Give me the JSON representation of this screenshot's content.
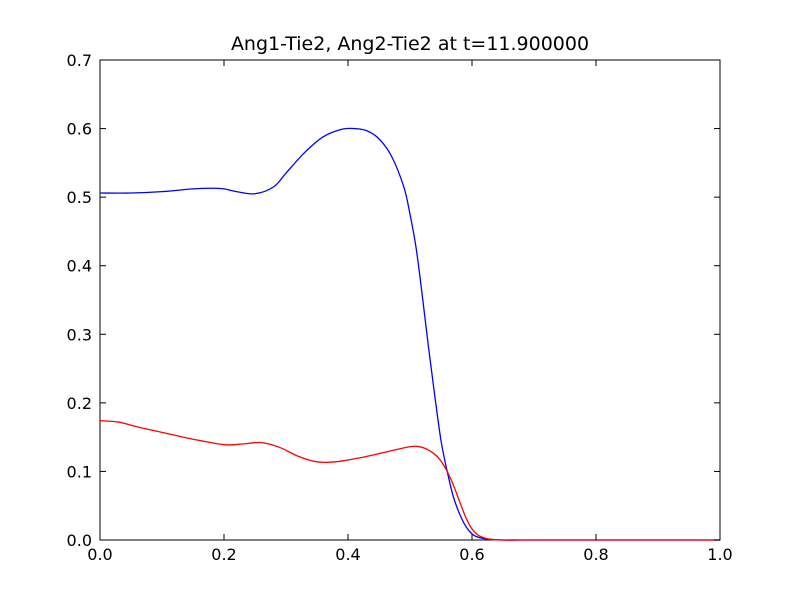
{
  "chart_data": {
    "type": "line",
    "title": "Ang1-Tie2, Ang2-Tie2 at t=11.900000",
    "xlabel": "",
    "ylabel": "",
    "xlim": [
      0.0,
      1.0
    ],
    "ylim": [
      0.0,
      0.7
    ],
    "grid": false,
    "x_ticks": [
      "0.0",
      "0.2",
      "0.4",
      "0.6",
      "0.8",
      "1.0"
    ],
    "y_ticks": [
      "0.0",
      "0.1",
      "0.2",
      "0.3",
      "0.4",
      "0.5",
      "0.6",
      "0.7"
    ],
    "series": [
      {
        "color": "#0000ff",
        "x": [
          0.0,
          0.05,
          0.1,
          0.15,
          0.18,
          0.2,
          0.22,
          0.25,
          0.28,
          0.3,
          0.33,
          0.36,
          0.39,
          0.41,
          0.43,
          0.45,
          0.47,
          0.49,
          0.5,
          0.51,
          0.52,
          0.53,
          0.54,
          0.55,
          0.56,
          0.57,
          0.58,
          0.59,
          0.6,
          0.61,
          0.62,
          0.63,
          0.65,
          0.7,
          0.8,
          0.9,
          1.0
        ],
        "y": [
          0.506,
          0.506,
          0.508,
          0.512,
          0.513,
          0.512,
          0.508,
          0.505,
          0.515,
          0.535,
          0.565,
          0.588,
          0.599,
          0.6,
          0.597,
          0.585,
          0.56,
          0.515,
          0.475,
          0.425,
          0.355,
          0.28,
          0.21,
          0.145,
          0.1,
          0.063,
          0.038,
          0.02,
          0.009,
          0.004,
          0.002,
          0.001,
          0.0,
          0.0,
          0.0,
          0.0,
          0.0
        ]
      },
      {
        "color": "#ff0000",
        "x": [
          0.0,
          0.03,
          0.06,
          0.1,
          0.15,
          0.2,
          0.23,
          0.26,
          0.29,
          0.32,
          0.35,
          0.38,
          0.42,
          0.46,
          0.5,
          0.52,
          0.54,
          0.55,
          0.56,
          0.57,
          0.58,
          0.59,
          0.6,
          0.61,
          0.62,
          0.63,
          0.65,
          0.7,
          0.8,
          0.9,
          1.0
        ],
        "y": [
          0.174,
          0.172,
          0.165,
          0.157,
          0.147,
          0.139,
          0.14,
          0.142,
          0.135,
          0.122,
          0.114,
          0.114,
          0.12,
          0.128,
          0.136,
          0.135,
          0.125,
          0.115,
          0.1,
          0.08,
          0.056,
          0.033,
          0.016,
          0.007,
          0.003,
          0.001,
          0.0,
          0.0,
          0.0,
          0.0,
          0.0
        ]
      }
    ]
  }
}
